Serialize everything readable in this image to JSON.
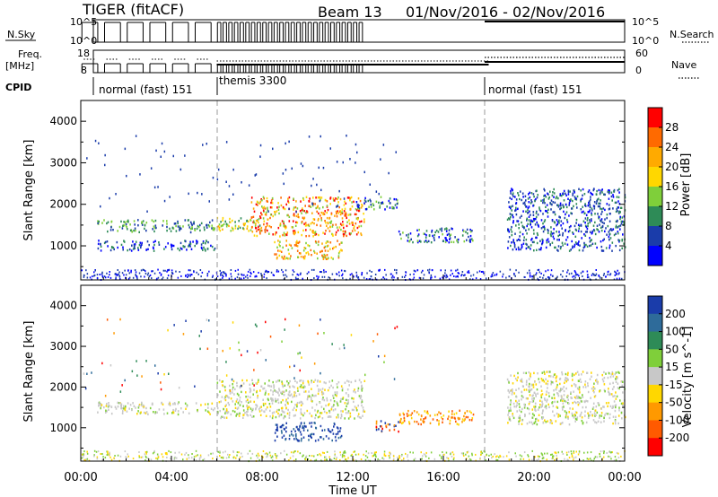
{
  "header": {
    "radar": "TIGER (fitACF)",
    "beam": "Beam 13",
    "date_range": "01/Nov/2016 - 02/Nov/2016"
  },
  "summary": {
    "nsky_label": "N.Sky",
    "nsky_ticks": [
      "10^5",
      "10^0"
    ],
    "nsearch_label": "N.Search",
    "nsearch_ticks": [
      "10^5",
      "10^0"
    ],
    "freq_label": "Freq.",
    "freq_unit": "[MHz]",
    "freq_ticks": [
      "18",
      "8"
    ],
    "nave_label": "Nave",
    "nave_ticks": [
      "60",
      "0"
    ],
    "cpid_label": "CPID",
    "cpid_segments": [
      {
        "label": "normal (fast) 151",
        "start_h": 0,
        "end_h": 6
      },
      {
        "label": "themis 3300",
        "start_h": 6,
        "end_h": 18
      },
      {
        "label": "normal (fast) 151",
        "start_h": 18,
        "end_h": 24
      }
    ]
  },
  "chart_data": [
    {
      "type": "heatmap",
      "title": "",
      "quantity": "Power",
      "colorbar_label": "Power [dB]",
      "colorbar_ticks": [
        "28",
        "24",
        "20",
        "16",
        "12",
        "8",
        "4"
      ],
      "colorbar_colors": [
        "#ff0000",
        "#ff6a00",
        "#ffaa00",
        "#ffd700",
        "#7fcf3a",
        "#2e8b57",
        "#1a3caa",
        "#0000ff"
      ],
      "ylabel": "Slant Range [km]",
      "yticks": [
        "4000",
        "3000",
        "2000",
        "1000"
      ],
      "ylim": [
        180,
        4500
      ],
      "xlim_hours": [
        0,
        24
      ],
      "regions": [
        {
          "t0": 0.7,
          "t1": 5.9,
          "r0": 1350,
          "r1": 1650,
          "level": "8-12"
        },
        {
          "t0": 0.7,
          "t1": 5.9,
          "r0": 900,
          "r1": 1150,
          "level": "4-8"
        },
        {
          "t0": 6.0,
          "t1": 8.0,
          "r0": 1350,
          "r1": 1700,
          "level": "12-20"
        },
        {
          "t0": 7.5,
          "t1": 12.5,
          "r0": 1250,
          "r1": 2200,
          "level": "16-28"
        },
        {
          "t0": 8.5,
          "t1": 11.5,
          "r0": 700,
          "r1": 1150,
          "level": "12-24"
        },
        {
          "t0": 12.0,
          "t1": 14.0,
          "r0": 1900,
          "r1": 2200,
          "level": "4-12"
        },
        {
          "t0": 14.0,
          "t1": 17.3,
          "r0": 1100,
          "r1": 1450,
          "level": "4-12"
        },
        {
          "t0": 18.8,
          "t1": 24.0,
          "r0": 900,
          "r1": 2400,
          "level": "4-8"
        }
      ]
    },
    {
      "type": "heatmap",
      "title": "",
      "quantity": "Velocity",
      "colorbar_label": "Velocity [m s^-1]",
      "colorbar_ticks": [
        "200",
        "100",
        "50",
        "15",
        "-15",
        "-50",
        "-100",
        "-200"
      ],
      "colorbar_colors": [
        "#1a3caa",
        "#2e6b9a",
        "#2e8b57",
        "#7fcf3a",
        "#c8c8c8",
        "#ffd700",
        "#ff9900",
        "#ff5a00",
        "#ff0000"
      ],
      "ylabel": "Slant Range [km]",
      "yticks": [
        "4000",
        "3000",
        "2000",
        "1000"
      ],
      "ylim": [
        180,
        4500
      ],
      "xlim_hours": [
        0,
        24
      ],
      "regions": [
        {
          "t0": 0.7,
          "t1": 5.9,
          "r0": 1350,
          "r1": 1650,
          "level": "-15..15"
        },
        {
          "t0": 6.0,
          "t1": 12.5,
          "r0": 1250,
          "r1": 2200,
          "level": "-15..15"
        },
        {
          "t0": 8.5,
          "t1": 11.5,
          "r0": 700,
          "r1": 1150,
          "level": "100..200"
        },
        {
          "t0": 13.0,
          "t1": 14.0,
          "r0": 900,
          "r1": 1200,
          "level": "-200..-50"
        },
        {
          "t0": 14.0,
          "t1": 17.3,
          "r0": 1100,
          "r1": 1450,
          "level": "-50..-15"
        },
        {
          "t0": 18.8,
          "t1": 24.0,
          "r0": 1100,
          "r1": 2400,
          "level": "-15..15"
        }
      ]
    }
  ],
  "xaxis": {
    "label": "Time UT",
    "ticks": [
      "00:00",
      "04:00",
      "08:00",
      "12:00",
      "16:00",
      "20:00",
      "00:00"
    ]
  }
}
